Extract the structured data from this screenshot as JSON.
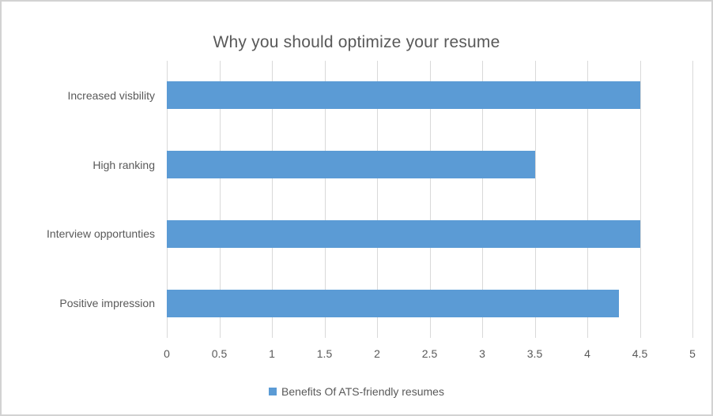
{
  "chart_data": {
    "type": "bar",
    "orientation": "horizontal",
    "title": "Why you should optimize your resume",
    "categories": [
      "Increased visbility",
      "High ranking",
      "Interview opportunties",
      "Positive impression"
    ],
    "series": [
      {
        "name": "Benefits Of ATS-friendly resumes",
        "values": [
          4.5,
          3.5,
          4.5,
          4.3
        ]
      }
    ],
    "xlim": [
      0,
      5
    ],
    "xtick_labels": [
      "0",
      "0.5",
      "1",
      "1.5",
      "2",
      "2.5",
      "3",
      "3.5",
      "4",
      "4.5",
      "5"
    ],
    "grid": true,
    "legend_position": "bottom",
    "colors": {
      "bar": "#5b9bd5",
      "gridline": "#d9d9d9",
      "text": "#595959",
      "frame_border": "#d2d2d2",
      "background": "#ffffff"
    }
  }
}
